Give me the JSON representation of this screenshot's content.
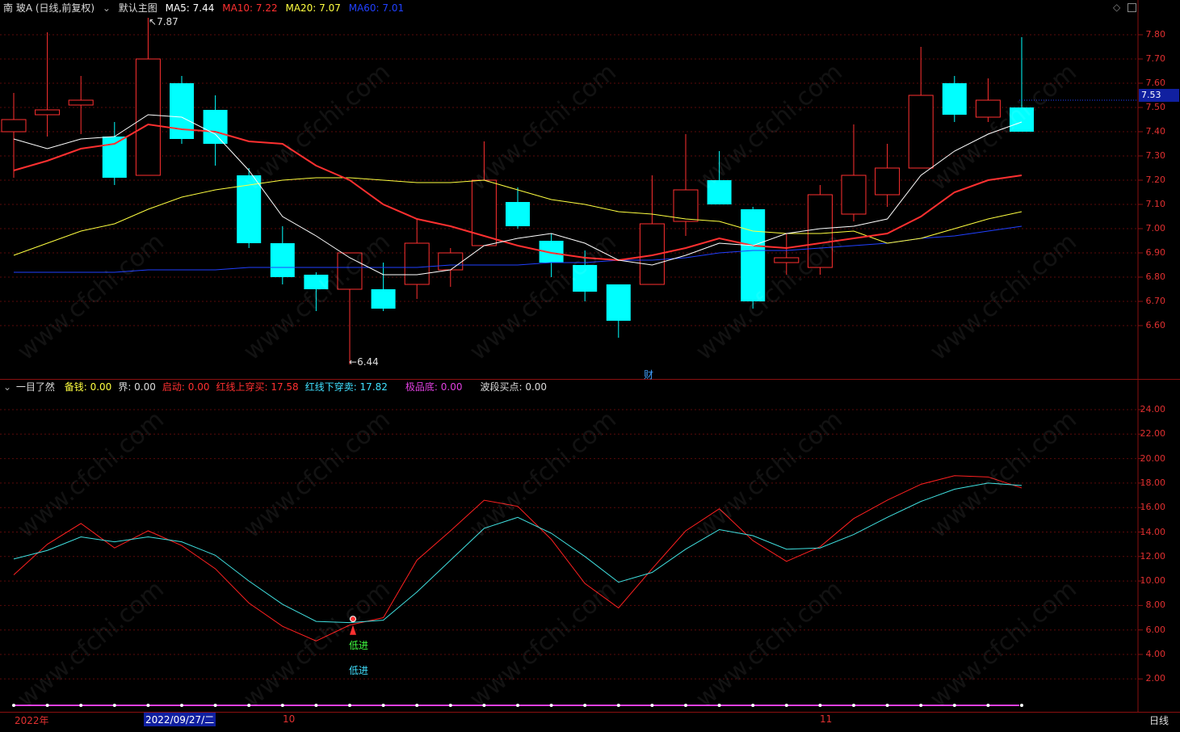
{
  "main": {
    "title": "南 玻A (日线,前复权)",
    "indicator_name": "默认主图",
    "ma5": {
      "label": "MA5:",
      "value": "7.44",
      "color": "#ffffff"
    },
    "ma10": {
      "label": "MA10:",
      "value": "7.22",
      "color": "#ff3030"
    },
    "ma20": {
      "label": "MA20:",
      "value": "7.07",
      "color": "#ffff40"
    },
    "ma60": {
      "label": "MA60:",
      "value": "7.01",
      "color": "#2040ff"
    },
    "high_marker": "7.87",
    "low_marker": "6.44",
    "fin_marker": "财",
    "current_price": "7.53",
    "axis": [
      "7.80",
      "7.70",
      "7.60",
      "7.50",
      "7.40",
      "7.30",
      "7.20",
      "7.10",
      "7.00",
      "6.90",
      "6.80",
      "6.70",
      "6.60"
    ]
  },
  "sub": {
    "title": "一目了然",
    "items": [
      {
        "label": "备钱:",
        "value": "0.00",
        "color": "#ffff40"
      },
      {
        "label": "界:",
        "value": "0.00",
        "color": "#dddddd"
      },
      {
        "label": "启动:",
        "value": "0.00",
        "color": "#ff3030"
      },
      {
        "label": "红线上穿买:",
        "value": "17.58",
        "color": "#ff3030"
      },
      {
        "label": "红线下穿卖:",
        "value": "17.82",
        "color": "#40e0ff"
      },
      {
        "label": "极品底:",
        "value": "0.00",
        "color": "#e040e0"
      },
      {
        "label": "波段买点:",
        "value": "0.00",
        "color": "#dddddd"
      }
    ],
    "marker1": "低进",
    "marker2": "低进",
    "axis": [
      "24.00",
      "22.00",
      "20.00",
      "18.00",
      "16.00",
      "14.00",
      "12.00",
      "10.00",
      "8.00",
      "6.00",
      "4.00",
      "2.00"
    ]
  },
  "timeline": {
    "year": "2022年",
    "cursor_date": "2022/09/27/二",
    "m10": "10",
    "m11": "11",
    "period": "日线"
  },
  "watermark": "www.cfchi.com",
  "candles": [
    {
      "o": 7.4,
      "c": 7.45,
      "h": 7.56,
      "l": 7.21
    },
    {
      "o": 7.47,
      "c": 7.49,
      "h": 7.81,
      "l": 7.38
    },
    {
      "o": 7.51,
      "c": 7.53,
      "h": 7.63,
      "l": 7.39
    },
    {
      "o": 7.38,
      "c": 7.21,
      "h": 7.44,
      "l": 7.18
    },
    {
      "o": 7.22,
      "c": 7.7,
      "h": 7.87,
      "l": 7.22
    },
    {
      "o": 7.6,
      "c": 7.37,
      "h": 7.63,
      "l": 7.35
    },
    {
      "o": 7.49,
      "c": 7.35,
      "h": 7.55,
      "l": 7.26
    },
    {
      "o": 7.22,
      "c": 6.94,
      "h": 7.25,
      "l": 6.92
    },
    {
      "o": 6.94,
      "c": 6.8,
      "h": 7.01,
      "l": 6.77
    },
    {
      "o": 6.81,
      "c": 6.75,
      "h": 6.82,
      "l": 6.66
    },
    {
      "o": 6.75,
      "c": 6.9,
      "h": 6.9,
      "l": 6.44
    },
    {
      "o": 6.75,
      "c": 6.67,
      "h": 6.86,
      "l": 6.66
    },
    {
      "o": 6.77,
      "c": 6.94,
      "h": 7.04,
      "l": 6.71
    },
    {
      "o": 6.83,
      "c": 6.9,
      "h": 6.92,
      "l": 6.76
    },
    {
      "o": 6.93,
      "c": 7.2,
      "h": 7.36,
      "l": 6.93
    },
    {
      "o": 7.11,
      "c": 7.01,
      "h": 7.17,
      "l": 7.0
    },
    {
      "o": 6.95,
      "c": 6.86,
      "h": 6.98,
      "l": 6.8
    },
    {
      "o": 6.85,
      "c": 6.74,
      "h": 6.91,
      "l": 6.7
    },
    {
      "o": 6.77,
      "c": 6.62,
      "h": 6.77,
      "l": 6.55
    },
    {
      "o": 6.77,
      "c": 7.02,
      "h": 7.22,
      "l": 6.77
    },
    {
      "o": 7.03,
      "c": 7.16,
      "h": 7.39,
      "l": 6.97
    },
    {
      "o": 7.2,
      "c": 7.1,
      "h": 7.32,
      "l": 7.1
    },
    {
      "o": 7.08,
      "c": 6.7,
      "h": 7.09,
      "l": 6.67
    },
    {
      "o": 6.86,
      "c": 6.88,
      "h": 6.98,
      "l": 6.81
    },
    {
      "o": 6.84,
      "c": 7.14,
      "h": 7.18,
      "l": 6.81
    },
    {
      "o": 7.06,
      "c": 7.22,
      "h": 7.43,
      "l": 7.03
    },
    {
      "o": 7.14,
      "c": 7.25,
      "h": 7.35,
      "l": 7.09
    },
    {
      "o": 7.25,
      "c": 7.55,
      "h": 7.75,
      "l": 7.25
    },
    {
      "o": 7.6,
      "c": 7.47,
      "h": 7.63,
      "l": 7.44
    },
    {
      "o": 7.46,
      "c": 7.53,
      "h": 7.62,
      "l": 7.44
    },
    {
      "o": 7.5,
      "c": 7.4,
      "h": 7.79,
      "l": 7.4
    }
  ],
  "ma5_series": [
    7.37,
    7.33,
    7.37,
    7.38,
    7.47,
    7.46,
    7.39,
    7.24,
    7.05,
    6.97,
    6.88,
    6.81,
    6.81,
    6.83,
    6.93,
    6.96,
    6.98,
    6.94,
    6.87,
    6.85,
    6.89,
    6.94,
    6.93,
    6.98,
    7.0,
    7.01,
    7.04,
    7.22,
    7.32,
    7.39,
    7.44
  ],
  "ma10_series": [
    7.24,
    7.28,
    7.33,
    7.35,
    7.43,
    7.41,
    7.4,
    7.36,
    7.35,
    7.26,
    7.2,
    7.1,
    7.04,
    7.01,
    6.97,
    6.93,
    6.9,
    6.88,
    6.87,
    6.89,
    6.92,
    6.96,
    6.93,
    6.92,
    6.94,
    6.96,
    6.98,
    7.05,
    7.15,
    7.2,
    7.22
  ],
  "ma20_series": [
    6.89,
    6.94,
    6.99,
    7.02,
    7.08,
    7.13,
    7.16,
    7.18,
    7.2,
    7.21,
    7.21,
    7.2,
    7.19,
    7.19,
    7.2,
    7.16,
    7.12,
    7.1,
    7.07,
    7.06,
    7.04,
    7.03,
    6.99,
    6.98,
    6.98,
    6.99,
    6.94,
    6.96,
    7.0,
    7.04,
    7.07
  ],
  "ma60_series": [
    6.82,
    6.82,
    6.82,
    6.82,
    6.83,
    6.83,
    6.83,
    6.84,
    6.84,
    6.84,
    6.84,
    6.84,
    6.84,
    6.85,
    6.85,
    6.85,
    6.86,
    6.86,
    6.87,
    6.87,
    6.88,
    6.9,
    6.91,
    6.91,
    6.92,
    6.93,
    6.94,
    6.96,
    6.97,
    6.99,
    7.01
  ],
  "red_line": [
    10.5,
    13.0,
    14.7,
    12.7,
    14.1,
    12.9,
    11.0,
    8.2,
    6.3,
    5.1,
    6.4,
    7.0,
    11.7,
    14.1,
    16.6,
    16.1,
    13.4,
    9.8,
    7.8,
    11.0,
    14.1,
    15.9,
    13.3,
    11.6,
    12.8,
    15.1,
    16.6,
    17.9,
    18.6,
    18.5,
    17.6
  ],
  "cyan_line": [
    11.8,
    12.5,
    13.6,
    13.2,
    13.6,
    13.2,
    12.1,
    10.0,
    8.1,
    6.7,
    6.6,
    6.8,
    9.1,
    11.7,
    14.3,
    15.2,
    13.9,
    12.0,
    9.9,
    10.7,
    12.6,
    14.2,
    13.7,
    12.6,
    12.7,
    13.8,
    15.2,
    16.5,
    17.5,
    18.0,
    17.8
  ]
}
